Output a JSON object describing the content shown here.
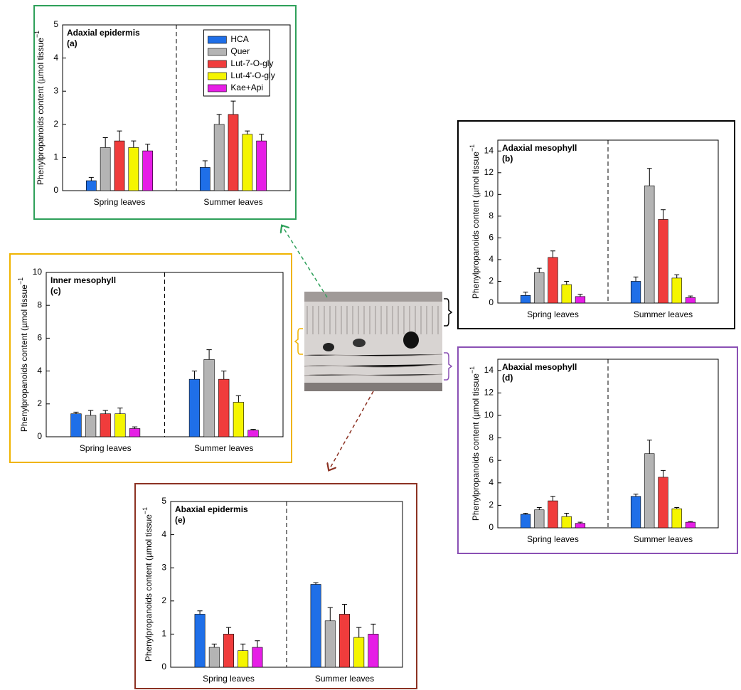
{
  "chart_data": [
    {
      "type": "bar",
      "title": "Adaxial epidermis",
      "label": "(a)",
      "ylabel": "Phenylpropanoids content  (µmol tissue",
      "ylabel_sup": "−1",
      "border_color": "#2ea05a",
      "legend": true,
      "categories": [
        "Spring leaves",
        "Summer leaves"
      ],
      "ylim": [
        0,
        5
      ],
      "yticks": [
        0,
        1,
        2,
        3,
        4,
        5
      ],
      "series": [
        {
          "name": "HCA",
          "color": "#1f6fe8",
          "values": [
            0.3,
            0.7
          ],
          "errors": [
            0.1,
            0.2
          ]
        },
        {
          "name": "Quer",
          "color": "#b4b4b4",
          "values": [
            1.3,
            2.0
          ],
          "errors": [
            0.3,
            0.3
          ]
        },
        {
          "name": "Lut-7-O-gly",
          "color": "#f03c3c",
          "values": [
            1.5,
            2.3
          ],
          "errors": [
            0.3,
            0.4
          ]
        },
        {
          "name": "Lut-4'-O-gly",
          "color": "#f5f500",
          "values": [
            1.3,
            1.7
          ],
          "errors": [
            0.2,
            0.1
          ]
        },
        {
          "name": "Kae+Api",
          "color": "#e61ee6",
          "values": [
            1.2,
            1.5
          ],
          "errors": [
            0.2,
            0.2
          ]
        }
      ]
    },
    {
      "type": "bar",
      "title": "Adaxial mesophyll",
      "label": "(b)",
      "ylabel": "Phenylpropanoids content  (µmol tissue",
      "ylabel_sup": "−1",
      "border_color": "#000000",
      "legend": false,
      "categories": [
        "Spring leaves",
        "Summer leaves"
      ],
      "ylim": [
        0,
        15
      ],
      "yticks": [
        0,
        2,
        4,
        6,
        8,
        10,
        12,
        14
      ],
      "series": [
        {
          "color": "#1f6fe8",
          "values": [
            0.7,
            2.0
          ],
          "errors": [
            0.3,
            0.4
          ]
        },
        {
          "color": "#b4b4b4",
          "values": [
            2.8,
            10.8
          ],
          "errors": [
            0.4,
            1.6
          ]
        },
        {
          "color": "#f03c3c",
          "values": [
            4.2,
            7.7
          ],
          "errors": [
            0.6,
            0.9
          ]
        },
        {
          "color": "#f5f500",
          "values": [
            1.7,
            2.3
          ],
          "errors": [
            0.3,
            0.3
          ]
        },
        {
          "color": "#e61ee6",
          "values": [
            0.6,
            0.5
          ],
          "errors": [
            0.2,
            0.15
          ]
        }
      ]
    },
    {
      "type": "bar",
      "title": "Inner mesophyll",
      "label": "(c)",
      "ylabel": "Phenylpropanoids content  (µmol tissue",
      "ylabel_sup": "−1",
      "border_color": "#f0b400",
      "legend": false,
      "categories": [
        "Spring leaves",
        "Summer leaves"
      ],
      "ylim": [
        0,
        10
      ],
      "yticks": [
        0,
        2,
        4,
        6,
        8,
        10
      ],
      "series": [
        {
          "color": "#1f6fe8",
          "values": [
            1.4,
            3.5
          ],
          "errors": [
            0.1,
            0.5
          ]
        },
        {
          "color": "#b4b4b4",
          "values": [
            1.3,
            4.7
          ],
          "errors": [
            0.3,
            0.6
          ]
        },
        {
          "color": "#f03c3c",
          "values": [
            1.4,
            3.5
          ],
          "errors": [
            0.2,
            0.5
          ]
        },
        {
          "color": "#f5f500",
          "values": [
            1.4,
            2.1
          ],
          "errors": [
            0.35,
            0.4
          ]
        },
        {
          "color": "#e61ee6",
          "values": [
            0.5,
            0.4
          ],
          "errors": [
            0.1,
            0.05
          ]
        }
      ]
    },
    {
      "type": "bar",
      "title": "Abaxial mesophyll",
      "label": "(d)",
      "ylabel": "Phenylpropanoids content  (µmol tissue",
      "ylabel_sup": "−1",
      "border_color": "#8a50b4",
      "legend": false,
      "categories": [
        "Spring leaves",
        "Summer leaves"
      ],
      "ylim": [
        0,
        15
      ],
      "yticks": [
        0,
        2,
        4,
        6,
        8,
        10,
        12,
        14
      ],
      "series": [
        {
          "color": "#1f6fe8",
          "values": [
            1.2,
            2.8
          ],
          "errors": [
            0.1,
            0.2
          ]
        },
        {
          "color": "#b4b4b4",
          "values": [
            1.6,
            6.6
          ],
          "errors": [
            0.2,
            1.2
          ]
        },
        {
          "color": "#f03c3c",
          "values": [
            2.4,
            4.5
          ],
          "errors": [
            0.4,
            0.6
          ]
        },
        {
          "color": "#f5f500",
          "values": [
            1.0,
            1.7
          ],
          "errors": [
            0.3,
            0.1
          ]
        },
        {
          "color": "#e61ee6",
          "values": [
            0.4,
            0.5
          ],
          "errors": [
            0.1,
            0.05
          ]
        }
      ]
    },
    {
      "type": "bar",
      "title": "Abaxial epidermis",
      "label": "(e)",
      "ylabel": "Phenylpropanoids content  (µmol tissue",
      "ylabel_sup": "−1",
      "border_color": "#8c3223",
      "legend": false,
      "categories": [
        "Spring leaves",
        "Summer leaves"
      ],
      "ylim": [
        0,
        5
      ],
      "yticks": [
        0,
        1,
        2,
        3,
        4,
        5
      ],
      "series": [
        {
          "color": "#1f6fe8",
          "values": [
            1.6,
            2.5
          ],
          "errors": [
            0.1,
            0.05
          ]
        },
        {
          "color": "#b4b4b4",
          "values": [
            0.6,
            1.4
          ],
          "errors": [
            0.1,
            0.4
          ]
        },
        {
          "color": "#f03c3c",
          "values": [
            1.0,
            1.6
          ],
          "errors": [
            0.2,
            0.3
          ]
        },
        {
          "color": "#f5f500",
          "values": [
            0.5,
            0.9
          ],
          "errors": [
            0.2,
            0.3
          ]
        },
        {
          "color": "#e61ee6",
          "values": [
            0.6,
            1.0
          ],
          "errors": [
            0.2,
            0.3
          ]
        }
      ]
    }
  ]
}
